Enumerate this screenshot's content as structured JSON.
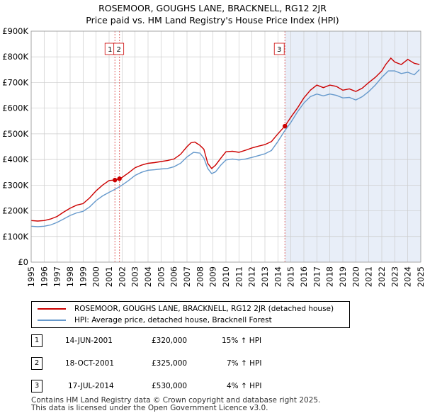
{
  "title_line1": "ROSEMOOR, GOUGHS LANE, BRACKNELL, RG12 2JR",
  "title_line2": "Price paid vs. HM Land Registry's House Price Index (HPI)",
  "colors": {
    "property": "#cc0000",
    "hpi": "#6699cc",
    "shade": "#e8eef8",
    "grid": "#cccccc",
    "vline": "#e06666"
  },
  "legend": {
    "property_label": "ROSEMOOR, GOUGHS LANE, BRACKNELL, RG12 2JR (detached house)",
    "hpi_label": "HPI: Average price, detached house, Bracknell Forest"
  },
  "sales": [
    {
      "num": "1",
      "date": "14-JUN-2001",
      "price": "£320,000",
      "hpi": "15% ↑ HPI"
    },
    {
      "num": "2",
      "date": "18-OCT-2001",
      "price": "£325,000",
      "hpi": "7% ↑ HPI"
    },
    {
      "num": "3",
      "date": "17-JUL-2014",
      "price": "£530,000",
      "hpi": "4% ↑ HPI"
    }
  ],
  "footer": {
    "line1": "Contains HM Land Registry data © Crown copyright and database right 2025.",
    "line2": "This data is licensed under the Open Government Licence v3.0."
  },
  "chart_data": {
    "type": "line",
    "title": "ROSEMOOR, GOUGHS LANE, BRACKNELL, RG12 2JR",
    "subtitle": "Price paid vs. HM Land Registry's House Price Index (HPI)",
    "xlabel": "",
    "ylabel": "",
    "xlim": [
      1995,
      2025
    ],
    "ylim": [
      0,
      900000
    ],
    "y_ticks": [
      {
        "v": 0,
        "label": "£0"
      },
      {
        "v": 100000,
        "label": "£100K"
      },
      {
        "v": 200000,
        "label": "£200K"
      },
      {
        "v": 300000,
        "label": "£300K"
      },
      {
        "v": 400000,
        "label": "£400K"
      },
      {
        "v": 500000,
        "label": "£500K"
      },
      {
        "v": 600000,
        "label": "£600K"
      },
      {
        "v": 700000,
        "label": "£700K"
      },
      {
        "v": 800000,
        "label": "£800K"
      },
      {
        "v": 900000,
        "label": "£900K"
      }
    ],
    "x_ticks": [
      "1995",
      "1996",
      "1997",
      "1998",
      "1999",
      "2000",
      "2001",
      "2002",
      "2003",
      "2004",
      "2005",
      "2006",
      "2007",
      "2008",
      "2009",
      "2010",
      "2011",
      "2012",
      "2013",
      "2014",
      "2015",
      "2016",
      "2017",
      "2018",
      "2019",
      "2020",
      "2021",
      "2022",
      "2023",
      "2024",
      "2025"
    ],
    "grid": true,
    "shaded_from": 2014.54,
    "markers": [
      {
        "label": "1",
        "x": 2001.45,
        "y": 320000
      },
      {
        "label": "2",
        "x": 2001.8,
        "y": 325000
      },
      {
        "label": "3",
        "x": 2014.54,
        "y": 530000
      }
    ],
    "series": [
      {
        "name": "ROSEMOOR, GOUGHS LANE, BRACKNELL, RG12 2JR (detached house)",
        "x": [
          1995.0,
          1995.5,
          1996.0,
          1996.5,
          1997.0,
          1997.5,
          1998.0,
          1998.5,
          1999.0,
          1999.5,
          2000.0,
          2000.5,
          2001.0,
          2001.45,
          2001.8,
          2002.0,
          2002.5,
          2003.0,
          2003.5,
          2004.0,
          2004.5,
          2005.0,
          2005.5,
          2006.0,
          2006.5,
          2007.0,
          2007.3,
          2007.6,
          2008.0,
          2008.3,
          2008.6,
          2008.9,
          2009.2,
          2009.6,
          2010.0,
          2010.5,
          2011.0,
          2011.5,
          2012.0,
          2012.5,
          2013.0,
          2013.5,
          2014.0,
          2014.54,
          2015.0,
          2015.5,
          2016.0,
          2016.5,
          2017.0,
          2017.5,
          2018.0,
          2018.5,
          2019.0,
          2019.5,
          2020.0,
          2020.5,
          2021.0,
          2021.5,
          2022.0,
          2022.3,
          2022.7,
          2023.0,
          2023.5,
          2024.0,
          2024.5,
          2024.9
        ],
        "values": [
          162000,
          160000,
          162000,
          168000,
          178000,
          195000,
          210000,
          222000,
          228000,
          250000,
          278000,
          300000,
          318000,
          320000,
          325000,
          330000,
          348000,
          368000,
          378000,
          385000,
          388000,
          392000,
          396000,
          402000,
          420000,
          450000,
          465000,
          468000,
          455000,
          440000,
          385000,
          365000,
          378000,
          405000,
          430000,
          432000,
          428000,
          436000,
          445000,
          452000,
          458000,
          470000,
          500000,
          530000,
          565000,
          600000,
          640000,
          670000,
          690000,
          680000,
          690000,
          685000,
          670000,
          675000,
          665000,
          678000,
          700000,
          720000,
          745000,
          770000,
          795000,
          780000,
          770000,
          790000,
          775000,
          770000
        ]
      },
      {
        "name": "HPI: Average price, detached house, Bracknell Forest",
        "x": [
          1995.0,
          1995.5,
          1996.0,
          1996.5,
          1997.0,
          1997.5,
          1998.0,
          1998.5,
          1999.0,
          1999.5,
          2000.0,
          2000.5,
          2001.0,
          2001.5,
          2002.0,
          2002.5,
          2003.0,
          2003.5,
          2004.0,
          2004.5,
          2005.0,
          2005.5,
          2006.0,
          2006.5,
          2007.0,
          2007.5,
          2008.0,
          2008.3,
          2008.6,
          2008.9,
          2009.2,
          2009.6,
          2010.0,
          2010.5,
          2011.0,
          2011.5,
          2012.0,
          2012.5,
          2013.0,
          2013.5,
          2014.0,
          2014.5,
          2015.0,
          2015.5,
          2016.0,
          2016.5,
          2017.0,
          2017.5,
          2018.0,
          2018.5,
          2019.0,
          2019.5,
          2020.0,
          2020.5,
          2021.0,
          2021.5,
          2022.0,
          2022.5,
          2023.0,
          2023.5,
          2024.0,
          2024.5,
          2024.9
        ],
        "values": [
          140000,
          138000,
          140000,
          145000,
          155000,
          168000,
          182000,
          192000,
          198000,
          215000,
          240000,
          258000,
          272000,
          285000,
          300000,
          318000,
          338000,
          350000,
          358000,
          360000,
          363000,
          365000,
          372000,
          385000,
          410000,
          428000,
          425000,
          405000,
          365000,
          345000,
          352000,
          378000,
          398000,
          402000,
          398000,
          402000,
          408000,
          415000,
          422000,
          435000,
          470000,
          510000,
          545000,
          585000,
          620000,
          645000,
          655000,
          648000,
          655000,
          650000,
          640000,
          642000,
          632000,
          645000,
          665000,
          690000,
          720000,
          745000,
          745000,
          735000,
          740000,
          730000,
          750000
        ]
      }
    ]
  }
}
